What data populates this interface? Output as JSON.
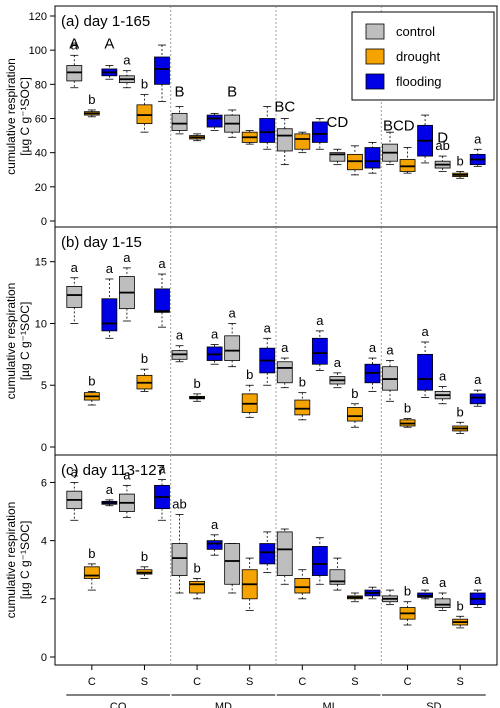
{
  "y_label_main": "cumulative respiration",
  "y_label_unit": "[µg C g⁻¹SOC]",
  "colors": {
    "control": "#bebebe",
    "drought": "#f5a300",
    "flooding": "#0000e6"
  },
  "legend": [
    "control",
    "drought",
    "flooding"
  ],
  "x_tick_labels": [
    "C",
    "S",
    "C",
    "S",
    "C",
    "S",
    "C",
    "S"
  ],
  "group_labels": [
    "CO",
    "MD",
    "MI",
    "SD"
  ],
  "chart_data": [
    {
      "type": "boxplot",
      "title": "(a) day 1-165",
      "ylim": [
        0,
        120
      ],
      "yticks": [
        0,
        20,
        40,
        60,
        80,
        100,
        120
      ],
      "boxes": [
        {
          "treatment": "control",
          "q": [
            78,
            82,
            87,
            91,
            97
          ],
          "label": "a"
        },
        {
          "treatment": "drought",
          "q": [
            61,
            62,
            63,
            64,
            65
          ],
          "label": "b"
        },
        {
          "treatment": "flooding",
          "q": [
            83,
            85,
            87,
            89,
            91
          ],
          "label": ""
        },
        {
          "treatment": "control",
          "q": [
            78,
            81,
            83,
            85,
            88
          ],
          "label": "a"
        },
        {
          "treatment": "drought",
          "q": [
            52,
            57,
            62,
            68,
            74
          ],
          "label": "b"
        },
        {
          "treatment": "flooding",
          "q": [
            70,
            80,
            89,
            96,
            103
          ],
          "label": ""
        },
        {
          "treatment": "control",
          "q": [
            51,
            53,
            57,
            63,
            67
          ],
          "label": ""
        },
        {
          "treatment": "drought",
          "q": [
            47,
            48,
            49,
            50,
            51
          ],
          "label": ""
        },
        {
          "treatment": "flooding",
          "q": [
            53,
            55,
            60,
            62,
            63
          ],
          "label": ""
        },
        {
          "treatment": "control",
          "q": [
            49,
            52,
            57,
            62,
            65
          ],
          "label": ""
        },
        {
          "treatment": "drought",
          "q": [
            45,
            46,
            49,
            52,
            53
          ],
          "label": ""
        },
        {
          "treatment": "flooding",
          "q": [
            42,
            46,
            52,
            60,
            67
          ],
          "label": ""
        },
        {
          "treatment": "control",
          "q": [
            33,
            41,
            50,
            54,
            60
          ],
          "label": ""
        },
        {
          "treatment": "drought",
          "q": [
            40,
            42,
            48,
            51,
            52
          ],
          "label": ""
        },
        {
          "treatment": "flooding",
          "q": [
            42,
            46,
            51,
            58,
            60
          ],
          "label": ""
        },
        {
          "treatment": "control",
          "q": [
            33,
            35,
            39,
            40,
            42
          ],
          "label": ""
        },
        {
          "treatment": "drought",
          "q": [
            27,
            30,
            35,
            39,
            44
          ],
          "label": ""
        },
        {
          "treatment": "flooding",
          "q": [
            28,
            31,
            35,
            43,
            46
          ],
          "label": ""
        },
        {
          "treatment": "control",
          "q": [
            33,
            35,
            40,
            45,
            52
          ],
          "label": ""
        },
        {
          "treatment": "drought",
          "q": [
            28,
            29,
            32,
            36,
            43
          ],
          "label": ""
        },
        {
          "treatment": "flooding",
          "q": [
            34,
            38,
            47,
            56,
            62
          ],
          "label": ""
        },
        {
          "treatment": "control",
          "q": [
            29,
            31,
            33,
            35,
            38
          ],
          "label": "ab"
        },
        {
          "treatment": "drought",
          "q": [
            25,
            26,
            27,
            28,
            29
          ],
          "label": "b"
        },
        {
          "treatment": "flooding",
          "q": [
            32,
            33,
            36,
            39,
            42
          ],
          "label": "a"
        }
      ],
      "group_letters": [
        {
          "pos": 1,
          "y": 101,
          "text": "A"
        },
        {
          "pos": 3,
          "y": 101,
          "text": "A"
        },
        {
          "pos": 7,
          "y": 73,
          "text": "B"
        },
        {
          "pos": 10,
          "y": 73,
          "text": "B"
        },
        {
          "pos": 13,
          "y": 64,
          "text": "BC"
        },
        {
          "pos": 16,
          "y": 55,
          "text": "CD"
        },
        {
          "pos": 19.5,
          "y": 53,
          "text": "BCD"
        },
        {
          "pos": 22,
          "y": 46,
          "text": "D"
        }
      ]
    },
    {
      "type": "boxplot",
      "title": "(b) day 1-15",
      "ylim": [
        0,
        17
      ],
      "yticks": [
        0,
        5,
        10,
        15
      ],
      "boxes": [
        {
          "treatment": "control",
          "q": [
            10.0,
            11.3,
            12.3,
            13.0,
            13.7
          ],
          "label": "a"
        },
        {
          "treatment": "drought",
          "q": [
            3.4,
            3.8,
            4.1,
            4.4,
            4.5
          ],
          "label": "b"
        },
        {
          "treatment": "flooding",
          "q": [
            8.8,
            9.4,
            10.0,
            12.0,
            13.6
          ],
          "label": "a"
        },
        {
          "treatment": "control",
          "q": [
            10.2,
            11.2,
            12.5,
            13.8,
            14.5
          ],
          "label": "a"
        },
        {
          "treatment": "drought",
          "q": [
            4.5,
            4.7,
            5.2,
            5.8,
            6.3
          ],
          "label": "b"
        },
        {
          "treatment": "flooding",
          "q": [
            9.7,
            10.9,
            11.0,
            12.8,
            14.0
          ],
          "label": "a"
        },
        {
          "treatment": "control",
          "q": [
            6.9,
            7.1,
            7.5,
            7.8,
            8.2
          ],
          "label": "a"
        },
        {
          "treatment": "drought",
          "q": [
            3.7,
            3.9,
            4.0,
            4.1,
            4.3
          ],
          "label": "b"
        },
        {
          "treatment": "flooding",
          "q": [
            6.7,
            7.0,
            7.5,
            8.1,
            8.3
          ],
          "label": "a"
        },
        {
          "treatment": "control",
          "q": [
            6.5,
            7.0,
            7.8,
            9.0,
            10.0
          ],
          "label": "a"
        },
        {
          "treatment": "drought",
          "q": [
            2.4,
            2.8,
            3.5,
            4.3,
            5.0
          ],
          "label": "b"
        },
        {
          "treatment": "flooding",
          "q": [
            5.0,
            6.0,
            7.0,
            8.0,
            8.8
          ],
          "label": "a"
        },
        {
          "treatment": "control",
          "q": [
            4.8,
            5.2,
            6.4,
            6.9,
            7.2
          ],
          "label": "a"
        },
        {
          "treatment": "drought",
          "q": [
            2.2,
            2.6,
            3.1,
            3.8,
            4.4
          ],
          "label": "b"
        },
        {
          "treatment": "flooding",
          "q": [
            6.2,
            6.7,
            7.6,
            8.8,
            9.4
          ],
          "label": "a"
        },
        {
          "treatment": "control",
          "q": [
            4.8,
            5.1,
            5.4,
            5.7,
            6.0
          ],
          "label": "a"
        },
        {
          "treatment": "drought",
          "q": [
            1.6,
            2.1,
            2.5,
            3.2,
            3.5
          ],
          "label": "b"
        },
        {
          "treatment": "flooding",
          "q": [
            4.5,
            5.2,
            6.0,
            6.7,
            7.2
          ],
          "label": "a"
        },
        {
          "treatment": "control",
          "q": [
            3.7,
            4.6,
            5.5,
            6.5,
            7.0
          ],
          "label": "a"
        },
        {
          "treatment": "drought",
          "q": [
            1.6,
            1.7,
            1.9,
            2.2,
            2.3
          ],
          "label": "b"
        },
        {
          "treatment": "flooding",
          "q": [
            4.0,
            4.6,
            5.5,
            7.5,
            8.5
          ],
          "label": "a"
        },
        {
          "treatment": "control",
          "q": [
            3.5,
            3.9,
            4.2,
            4.5,
            4.9
          ],
          "label": "a"
        },
        {
          "treatment": "drought",
          "q": [
            1.1,
            1.3,
            1.5,
            1.7,
            2.0
          ],
          "label": "b"
        },
        {
          "treatment": "flooding",
          "q": [
            3.3,
            3.5,
            4.0,
            4.3,
            4.6
          ],
          "label": "a"
        }
      ],
      "group_letters": []
    },
    {
      "type": "boxplot",
      "title": "(c) day 113-127",
      "ylim": [
        0,
        6.6
      ],
      "yticks": [
        0,
        2,
        4,
        6
      ],
      "boxes": [
        {
          "treatment": "control",
          "q": [
            4.7,
            5.1,
            5.4,
            5.7,
            6.0
          ],
          "label": "a"
        },
        {
          "treatment": "drought",
          "q": [
            2.3,
            2.7,
            2.8,
            3.1,
            3.2
          ],
          "label": "b"
        },
        {
          "treatment": "flooding",
          "q": [
            5.2,
            5.25,
            5.3,
            5.35,
            5.4
          ],
          "label": "a"
        },
        {
          "treatment": "control",
          "q": [
            4.8,
            5.0,
            5.3,
            5.6,
            5.9
          ],
          "label": "a"
        },
        {
          "treatment": "drought",
          "q": [
            2.7,
            2.85,
            2.9,
            3.0,
            3.1
          ],
          "label": "b"
        },
        {
          "treatment": "flooding",
          "q": [
            4.7,
            5.1,
            5.5,
            5.9,
            6.1
          ],
          "label": "a"
        },
        {
          "treatment": "control",
          "q": [
            2.2,
            2.8,
            3.4,
            3.9,
            4.9
          ],
          "label": "ab"
        },
        {
          "treatment": "drought",
          "q": [
            2.0,
            2.2,
            2.5,
            2.6,
            2.7
          ],
          "label": "b"
        },
        {
          "treatment": "flooding",
          "q": [
            3.5,
            3.7,
            3.9,
            4.0,
            4.2
          ],
          "label": "a"
        },
        {
          "treatment": "control",
          "q": [
            2.2,
            2.5,
            3.3,
            3.9,
            3.9
          ],
          "label": ""
        },
        {
          "treatment": "drought",
          "q": [
            1.6,
            2.0,
            2.5,
            3.0,
            3.4
          ],
          "label": ""
        },
        {
          "treatment": "flooding",
          "q": [
            2.9,
            3.2,
            3.6,
            3.9,
            4.3
          ],
          "label": ""
        },
        {
          "treatment": "control",
          "q": [
            2.5,
            2.8,
            3.7,
            4.3,
            4.4
          ],
          "label": ""
        },
        {
          "treatment": "drought",
          "q": [
            2.0,
            2.2,
            2.4,
            2.7,
            3.0
          ],
          "label": ""
        },
        {
          "treatment": "flooding",
          "q": [
            2.5,
            2.8,
            3.2,
            3.8,
            4.1
          ],
          "label": ""
        },
        {
          "treatment": "control",
          "q": [
            2.3,
            2.5,
            2.6,
            3.0,
            3.4
          ],
          "label": ""
        },
        {
          "treatment": "drought",
          "q": [
            1.9,
            2.0,
            2.05,
            2.1,
            2.2
          ],
          "label": ""
        },
        {
          "treatment": "flooding",
          "q": [
            2.0,
            2.1,
            2.2,
            2.3,
            2.4
          ],
          "label": ""
        },
        {
          "treatment": "control",
          "q": [
            1.8,
            1.9,
            2.0,
            2.1,
            2.3
          ],
          "label": ""
        },
        {
          "treatment": "drought",
          "q": [
            1.1,
            1.3,
            1.5,
            1.7,
            1.9
          ],
          "label": "b"
        },
        {
          "treatment": "flooding",
          "q": [
            2.0,
            2.05,
            2.1,
            2.2,
            2.3
          ],
          "label": "a"
        },
        {
          "treatment": "control",
          "q": [
            1.6,
            1.7,
            1.8,
            2.0,
            2.2
          ],
          "label": "a"
        },
        {
          "treatment": "drought",
          "q": [
            1.0,
            1.1,
            1.2,
            1.3,
            1.4
          ],
          "label": "b"
        },
        {
          "treatment": "flooding",
          "q": [
            1.7,
            1.8,
            2.0,
            2.2,
            2.3
          ],
          "label": "a"
        }
      ],
      "group_letters": []
    }
  ]
}
